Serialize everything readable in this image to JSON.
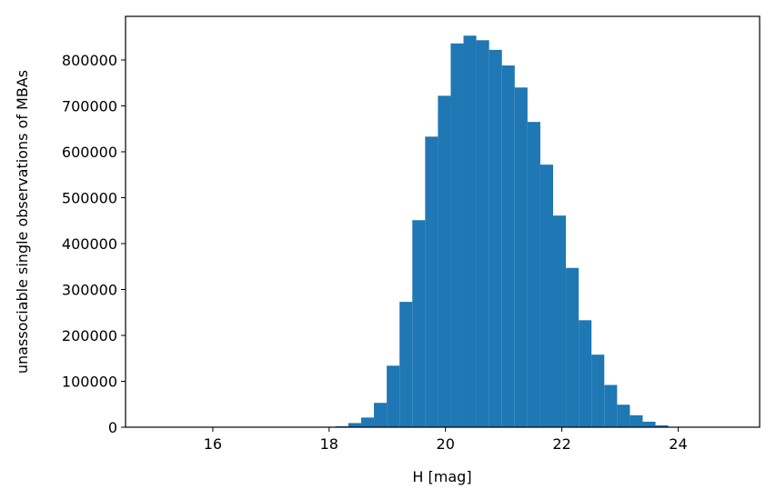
{
  "chart_data": {
    "type": "bar",
    "xlabel": "H [mag]",
    "ylabel": "unassociable single observations of MBAs",
    "xlim": [
      14.5,
      25.4
    ],
    "ylim": [
      0,
      895000
    ],
    "grid": false,
    "bar_color": "#1f77b4",
    "bin_width": 0.22,
    "x_ticks": [
      "16",
      "18",
      "20",
      "22",
      "24"
    ],
    "y_ticks": [
      "0",
      "100000",
      "200000",
      "300000",
      "400000",
      "500000",
      "600000",
      "700000",
      "800000"
    ],
    "x": [
      18.22,
      18.44,
      18.66,
      18.88,
      19.1,
      19.32,
      19.54,
      19.76,
      19.98,
      20.2,
      20.42,
      20.64,
      20.86,
      21.08,
      21.3,
      21.52,
      21.74,
      21.96,
      22.18,
      22.4,
      22.62,
      22.84,
      23.06,
      23.28,
      23.5,
      23.72,
      23.94
    ],
    "values": [
      2000,
      9000,
      21000,
      53000,
      134000,
      273000,
      451000,
      633000,
      722000,
      836000,
      853000,
      843000,
      822000,
      788000,
      740000,
      665000,
      572000,
      461000,
      347000,
      233000,
      158000,
      92000,
      49000,
      26000,
      12000,
      4000,
      1000
    ]
  }
}
